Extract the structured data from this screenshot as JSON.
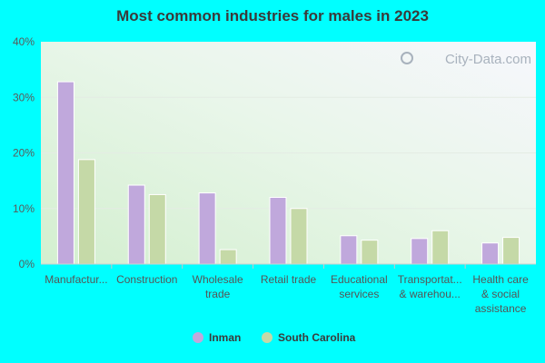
{
  "chart_data": {
    "type": "bar",
    "title": "Most common industries for males in 2023",
    "watermark": "City-Data.com",
    "categories": [
      [
        "Manufactur..."
      ],
      [
        "Construction"
      ],
      [
        "Wholesale",
        "trade"
      ],
      [
        "Retail trade"
      ],
      [
        "Educational",
        "services"
      ],
      [
        "Transportat...",
        "& warehou..."
      ],
      [
        "Health care",
        "& social",
        "assistance"
      ]
    ],
    "series": [
      {
        "name": "Inman",
        "color": "#c0a8dc",
        "values": [
          32.8,
          14.2,
          12.8,
          12.0,
          5.1,
          4.6,
          3.8
        ]
      },
      {
        "name": "South Carolina",
        "color": "#c5d9a7",
        "values": [
          18.8,
          12.5,
          2.6,
          10.0,
          4.3,
          6.0,
          4.8
        ]
      }
    ],
    "ylim": [
      0,
      40
    ],
    "yticks": [
      "0%",
      "10%",
      "20%",
      "30%",
      "40%"
    ],
    "legend_position": "bottom",
    "grid": true
  }
}
